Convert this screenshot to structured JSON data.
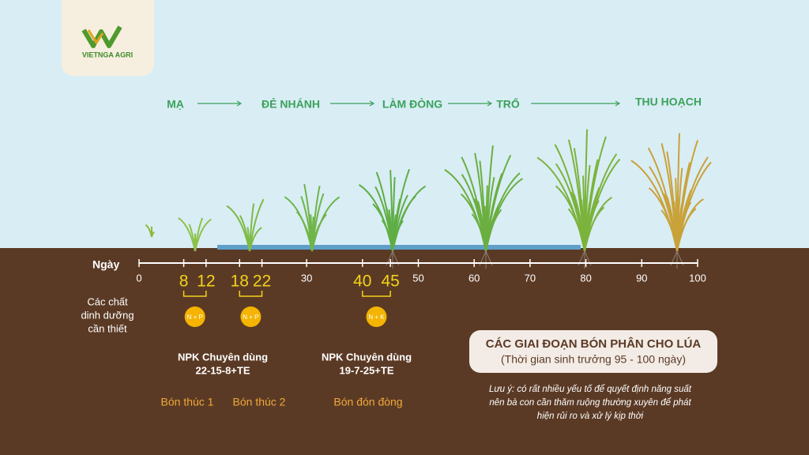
{
  "logo": {
    "name": "VIETNGA AGRI"
  },
  "stages": [
    "MẠ",
    "ĐẺ NHÁNH",
    "LÀM ĐÒNG",
    "TRỔ",
    "THU HOẠCH"
  ],
  "timeline": {
    "label": "Ngày",
    "ticks": [
      0,
      30,
      50,
      60,
      70,
      80,
      90,
      100
    ]
  },
  "nutrient_label": [
    "Các chất",
    "dinh dưỡng",
    "cần thiết"
  ],
  "applications": [
    {
      "from": 8,
      "to": 12,
      "nutrient": "N + P",
      "name": "Bón thúc 1"
    },
    {
      "from": 18,
      "to": 22,
      "nutrient": "N + P",
      "name": "Bón thúc 2"
    },
    {
      "from": 40,
      "to": 45,
      "nutrient": "N + K",
      "name": "Bón đón đòng"
    }
  ],
  "products": [
    {
      "name": "NPK Chuyên dùng",
      "formula": "22-15-8+TE"
    },
    {
      "name": "NPK Chuyên dùng",
      "formula": "19-7-25+TE"
    }
  ],
  "info": {
    "title": "CÁC GIAI ĐOẠN BÓN PHÂN CHO LÚA",
    "subtitle": "(Thời gian sinh trưởng 95 - 100 ngày)",
    "note": [
      "Lưu ý: có rất nhiều yếu tố để quyết định năng suất",
      "nên bà con cần thăm ruộng thường xuyên để phát",
      "hiện rủi ro và xử lý kịp thời"
    ]
  }
}
